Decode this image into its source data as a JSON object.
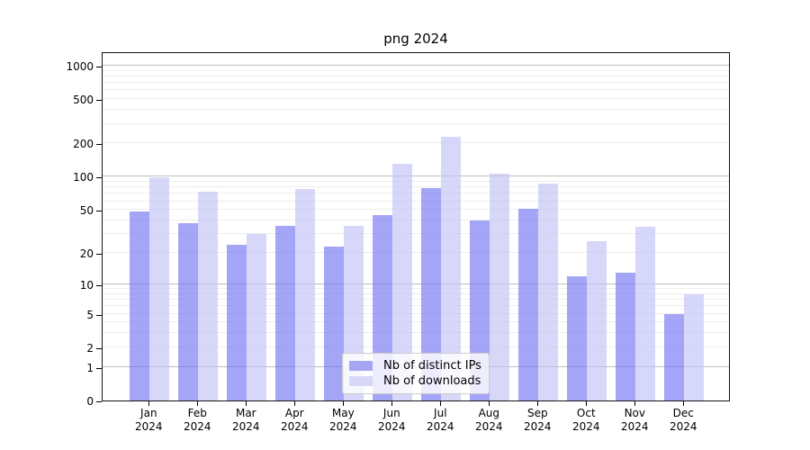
{
  "title": "png 2024",
  "chart_data": {
    "type": "bar",
    "title": "png 2024",
    "categories": [
      "Jan",
      "Feb",
      "Mar",
      "Apr",
      "May",
      "Jun",
      "Jul",
      "Aug",
      "Sep",
      "Oct",
      "Nov",
      "Dec"
    ],
    "year": "2024",
    "series": [
      {
        "name": "Nb of distinct IPs",
        "values": [
          48,
          38,
          24,
          36,
          23,
          45,
          79,
          40,
          51,
          12,
          13,
          5
        ],
        "fill": "rgba(116,116,242,0.65)",
        "legend_color": "#a5a5f2"
      },
      {
        "name": "Nb of downloads",
        "values": [
          100,
          73,
          30,
          78,
          36,
          131,
          230,
          106,
          87,
          26,
          35,
          8
        ],
        "fill": "rgba(193,193,247,0.65)",
        "legend_color": "#d7d7f8"
      }
    ],
    "yscale": "log1p",
    "ylim": [
      0,
      1000
    ],
    "y_ticks": [
      "1000",
      "500",
      "200",
      "100",
      "50",
      "20",
      "10",
      "5",
      "2",
      "1",
      "0"
    ],
    "grid": {
      "major_values": [
        1,
        10,
        100,
        1000
      ],
      "major_color": "#bdbdbd",
      "minor_color": "#ededed"
    },
    "legend_position": "bottom-center",
    "axis_color": "#000000"
  }
}
